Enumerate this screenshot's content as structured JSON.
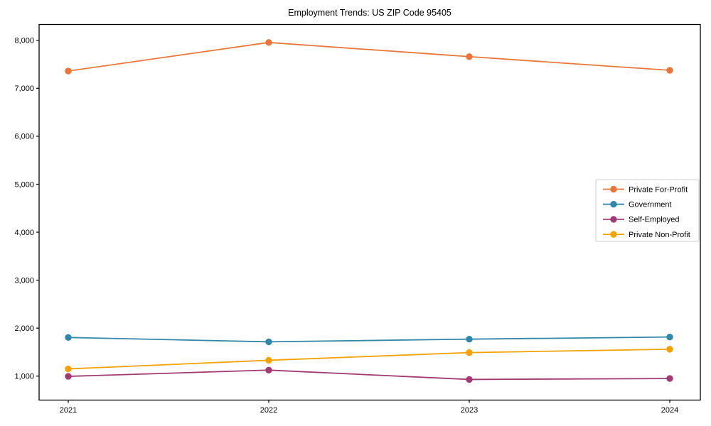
{
  "chart_data": {
    "type": "line",
    "title": "Employment Trends: US ZIP Code 95405",
    "categories": [
      "2021",
      "2022",
      "2023",
      "2024"
    ],
    "series": [
      {
        "name": "Private For-Profit",
        "color": "#E8763C",
        "values": [
          7360,
          7955,
          7660,
          7375
        ]
      },
      {
        "name": "Government",
        "color": "#3187A8",
        "values": [
          1805,
          1715,
          1770,
          1815
        ]
      },
      {
        "name": "Self-Employed",
        "color": "#A13A72",
        "values": [
          995,
          1125,
          930,
          950
        ]
      },
      {
        "name": "Private Non-Profit",
        "color": "#F2A206",
        "values": [
          1150,
          1330,
          1490,
          1560
        ]
      }
    ],
    "xlabel": "",
    "ylabel": "",
    "ylim": [
      500,
      8330
    ],
    "yticks": [
      1000,
      2000,
      3000,
      4000,
      5000,
      6000,
      7000,
      8000
    ],
    "ytick_format": "comma",
    "grid": false,
    "legend_position": "right-middle",
    "spine_color": "#000000",
    "legend_border_color": "#cccccc"
  }
}
